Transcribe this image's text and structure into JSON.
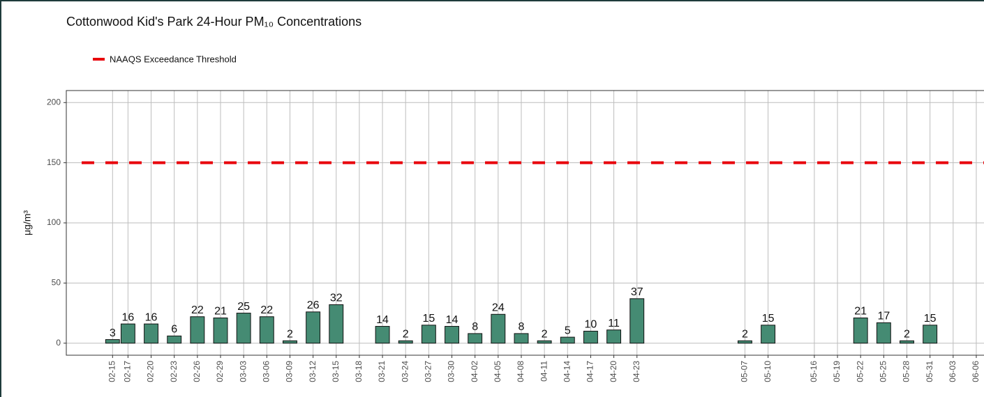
{
  "chart_data": {
    "type": "bar",
    "title": "Cottonwood Kid's Park 24-Hour PM₁₀ Concentrations",
    "y_label": "μg/m³",
    "x": [
      "02-15",
      "02-17",
      "02-20",
      "02-23",
      "02-26",
      "02-29",
      "03-03",
      "03-06",
      "03-09",
      "03-12",
      "03-15",
      "03-21",
      "03-24",
      "03-27",
      "03-30",
      "04-02",
      "04-05",
      "04-08",
      "04-11",
      "04-14",
      "04-17",
      "04-20",
      "04-23",
      "05-07",
      "05-10",
      "05-22",
      "05-25",
      "05-28",
      "05-31"
    ],
    "values": [
      3,
      16,
      16,
      6,
      22,
      21,
      25,
      22,
      2,
      26,
      32,
      14,
      2,
      15,
      14,
      8,
      24,
      8,
      2,
      5,
      10,
      11,
      37,
      2,
      15,
      21,
      17,
      2,
      15
    ],
    "color": "#458b73",
    "threshold": {
      "name": "NAAQS Exceedance Threshold",
      "value": 150,
      "color": "#e8000b"
    },
    "xlim": [
      "02-09",
      "06-07"
    ],
    "xticks": [
      "02-15",
      "02-17",
      "02-20",
      "02-23",
      "02-26",
      "02-29",
      "03-03",
      "03-06",
      "03-09",
      "03-12",
      "03-15",
      "03-18",
      "03-21",
      "03-24",
      "03-27",
      "03-30",
      "04-02",
      "04-05",
      "04-08",
      "04-11",
      "04-14",
      "04-17",
      "04-20",
      "04-23",
      "05-07",
      "05-10",
      "05-16",
      "05-19",
      "05-22",
      "05-25",
      "05-28",
      "05-31",
      "06-03",
      "06-06"
    ],
    "ylim": [
      -10,
      210
    ],
    "yticks": [
      0,
      50,
      100,
      150,
      200
    ],
    "grid": true
  }
}
